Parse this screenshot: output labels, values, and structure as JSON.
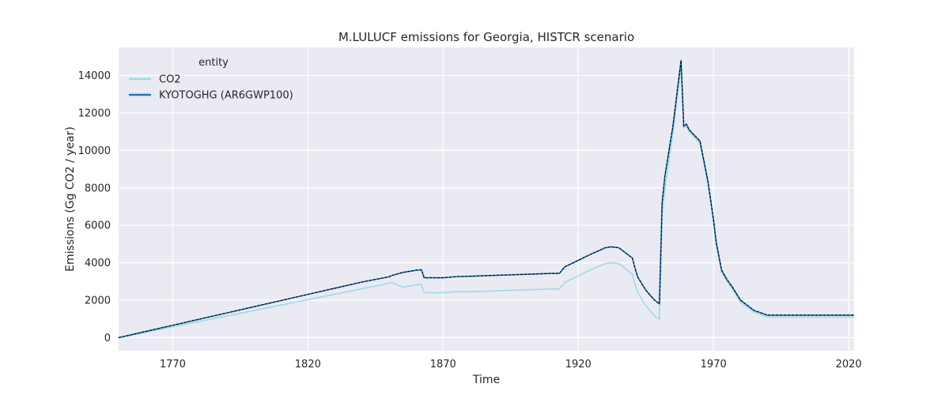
{
  "chart_data": {
    "type": "line",
    "title": "M.LULUCF emissions for Georgia, HISTCR scenario",
    "xlabel": "Time",
    "ylabel": "Emissions (Gg CO2 / year)",
    "xlim": [
      1750,
      2022
    ],
    "ylim": [
      -700,
      15500
    ],
    "xticks": [
      1770,
      1820,
      1870,
      1920,
      1970,
      2020
    ],
    "yticks": [
      0,
      2000,
      4000,
      6000,
      8000,
      10000,
      12000,
      14000
    ],
    "grid": true,
    "legend": {
      "title": "entity",
      "placement": "top-left"
    },
    "x": [
      1750,
      1760,
      1770,
      1780,
      1790,
      1800,
      1810,
      1820,
      1830,
      1840,
      1850,
      1851,
      1855,
      1860,
      1862,
      1863,
      1870,
      1875,
      1880,
      1890,
      1900,
      1910,
      1913,
      1915,
      1920,
      1925,
      1930,
      1932,
      1935,
      1940,
      1941,
      1942,
      1945,
      1948,
      1950,
      1951,
      1952,
      1955,
      1958,
      1959,
      1960,
      1961,
      1965,
      1968,
      1970,
      1971,
      1973,
      1975,
      1977,
      1980,
      1985,
      1990,
      1995,
      2000,
      2005,
      2010,
      2015,
      2020,
      2022
    ],
    "series": [
      {
        "name": "CO2",
        "color": "#9edae5",
        "values": [
          0,
          290,
          580,
          870,
          1160,
          1450,
          1740,
          2030,
          2320,
          2610,
          2900,
          2950,
          2700,
          2820,
          2850,
          2400,
          2400,
          2450,
          2450,
          2500,
          2550,
          2600,
          2600,
          2950,
          3300,
          3650,
          3950,
          4000,
          3950,
          3400,
          2850,
          2400,
          1700,
          1200,
          970,
          6500,
          7900,
          10900,
          14600,
          11200,
          11300,
          11000,
          10400,
          8200,
          6200,
          5000,
          3500,
          3000,
          2600,
          1900,
          1350,
          1100,
          1100,
          1100,
          1100,
          1100,
          1100,
          1100,
          1100
        ]
      },
      {
        "name": "KYOTOGHG (AR6GWP100)",
        "color": "#1f77b4",
        "values": [
          0,
          330,
          660,
          990,
          1320,
          1650,
          1980,
          2310,
          2640,
          2970,
          3250,
          3320,
          3480,
          3600,
          3620,
          3200,
          3200,
          3260,
          3280,
          3330,
          3380,
          3430,
          3430,
          3780,
          4130,
          4480,
          4800,
          4850,
          4800,
          4250,
          3700,
          3230,
          2530,
          2030,
          1800,
          7200,
          8600,
          11300,
          14800,
          11300,
          11400,
          11100,
          10500,
          8300,
          6300,
          5100,
          3600,
          3100,
          2700,
          2000,
          1450,
          1200,
          1200,
          1200,
          1200,
          1200,
          1200,
          1200,
          1200
        ]
      }
    ]
  }
}
